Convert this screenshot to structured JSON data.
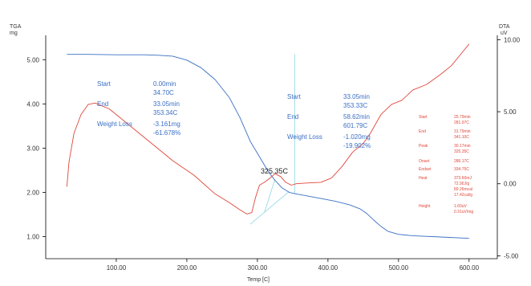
{
  "chart_data": {
    "type": "line",
    "xlabel": "Temp [C]",
    "y_left_label": [
      "TGA",
      "mg"
    ],
    "y_right_label": [
      "DTA",
      "uV"
    ],
    "xlim": [
      0,
      640
    ],
    "ylim_left": [
      0.5,
      5.55
    ],
    "ylim_right": [
      -5.2,
      10.3
    ],
    "x_ticks": [
      100,
      200,
      300,
      400,
      500,
      600
    ],
    "x_tick_labels": [
      "100.00",
      "200.00",
      "300.00",
      "400.00",
      "500.00",
      "600.00"
    ],
    "y_left_ticks": [
      1,
      2,
      3,
      4,
      5
    ],
    "y_left_tick_labels": [
      "1.00",
      "2.00",
      "3.00",
      "4.00",
      "5.00"
    ],
    "y_right_ticks": [
      -5,
      0,
      5,
      10
    ],
    "y_right_tick_labels": [
      "-5.00",
      "0.00",
      "5.00",
      "10.00"
    ],
    "grid": false,
    "colors": {
      "tga": "#3a6fc4",
      "dta": "#e0473c",
      "aux": "#8fd6e4"
    },
    "series": [
      {
        "axis": "left",
        "points": [
          [
            30,
            5.12
          ],
          [
            60,
            5.12
          ],
          [
            100,
            5.11
          ],
          [
            140,
            5.11
          ],
          [
            160,
            5.1
          ],
          [
            180,
            5.08
          ],
          [
            200,
            4.99
          ],
          [
            220,
            4.82
          ],
          [
            240,
            4.55
          ],
          [
            260,
            4.15
          ],
          [
            275,
            3.7
          ],
          [
            290,
            3.15
          ],
          [
            305,
            2.75
          ],
          [
            315,
            2.48
          ],
          [
            325,
            2.27
          ],
          [
            335,
            2.1
          ],
          [
            345,
            2.0
          ],
          [
            353,
            1.97
          ],
          [
            370,
            1.92
          ],
          [
            390,
            1.86
          ],
          [
            410,
            1.8
          ],
          [
            430,
            1.72
          ],
          [
            445,
            1.63
          ],
          [
            455,
            1.52
          ],
          [
            465,
            1.37
          ],
          [
            475,
            1.23
          ],
          [
            485,
            1.12
          ],
          [
            500,
            1.05
          ],
          [
            520,
            1.02
          ],
          [
            560,
            0.99
          ],
          [
            600,
            0.96
          ]
        ]
      },
      {
        "axis": "right",
        "points": [
          [
            30,
            -0.2
          ],
          [
            33,
            1.5
          ],
          [
            40,
            3.5
          ],
          [
            50,
            4.8
          ],
          [
            60,
            5.5
          ],
          [
            70,
            5.6
          ],
          [
            90,
            5.2
          ],
          [
            120,
            4.0
          ],
          [
            150,
            2.8
          ],
          [
            180,
            1.6
          ],
          [
            210,
            0.6
          ],
          [
            240,
            -0.7
          ],
          [
            260,
            -1.3
          ],
          [
            275,
            -1.8
          ],
          [
            285,
            -2.1
          ],
          [
            292,
            -2.0
          ],
          [
            297,
            -1.0
          ],
          [
            303,
            -0.1
          ],
          [
            310,
            0.1
          ],
          [
            318,
            0.4
          ],
          [
            325,
            0.7
          ],
          [
            333,
            0.5
          ],
          [
            340,
            0.1
          ],
          [
            348,
            -0.1
          ],
          [
            355,
            0.0
          ],
          [
            370,
            0.05
          ],
          [
            390,
            0.1
          ],
          [
            405,
            0.4
          ],
          [
            420,
            1.2
          ],
          [
            435,
            2.2
          ],
          [
            450,
            2.8
          ],
          [
            460,
            3.5
          ],
          [
            475,
            4.8
          ],
          [
            490,
            5.5
          ],
          [
            505,
            5.8
          ],
          [
            520,
            6.5
          ],
          [
            540,
            6.9
          ],
          [
            560,
            7.6
          ],
          [
            575,
            8.2
          ],
          [
            590,
            9.1
          ],
          [
            600,
            9.7
          ]
        ]
      }
    ],
    "markers": [
      {
        "axis": "left",
        "x1": 353,
        "y1": 5.12,
        "x2": 353,
        "y2": 1.97
      },
      {
        "axis": "left",
        "x1": 290,
        "y1": 1.28,
        "x2": 345,
        "y2": 2.02
      },
      {
        "axis": "left",
        "x1": 310,
        "y1": 1.55,
        "x2": 325,
        "y2": 2.3
      }
    ],
    "annotations": {
      "peak_label": "325.35C",
      "tga_step1": {
        "start_label": "Start",
        "start_time": "0.00min",
        "start_temp": "34.70C",
        "end_label": "End",
        "end_time": "33.05min",
        "end_temp": "353.34C",
        "loss_label": "Weight Loss",
        "loss_mg": "-3.161mg",
        "loss_pct": "-61.678%"
      },
      "tga_step2": {
        "start_label": "Start",
        "start_time": "33.05min",
        "start_temp": "353.33C",
        "end_label": "End",
        "end_time": "58.62min",
        "end_temp": "601.79C",
        "loss_label": "Weight Loss",
        "loss_mg": "-1.020mg",
        "loss_pct": "-19.902%"
      },
      "dta_peak": {
        "start_label": "Start",
        "start_time": "25.79min",
        "start_temp": "281.97C",
        "end_label": "End",
        "end_time": "31.79min",
        "end_temp": "341.10C",
        "peak_label": "Peak",
        "peak_time": "30.17min",
        "peak_temp": "325.35C",
        "onset_label": "Onset",
        "onset_temp": "286.17C",
        "endset_label": "Endset",
        "endset_temp": "334.75C",
        "heat_label": "Heat",
        "heat_1": "373.60mJ",
        "heat_2": "72.90J/g",
        "heat_3": "89.26mcal",
        "heat_4": "17.42cal/g",
        "height_label": "Height",
        "height_1": "1.60uV",
        "height_2": "0.31uV/mg"
      }
    }
  }
}
